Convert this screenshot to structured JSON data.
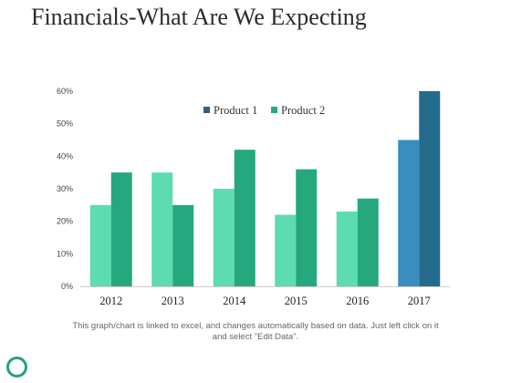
{
  "slide": {
    "title": "Financials-What Are We Expecting",
    "footnote_line1": "This graph/chart is linked to excel, and changes automatically based on data. Just left click on it",
    "footnote_line2": "and select \"Edit Data\".",
    "ring_icon": "ring-icon"
  },
  "chart_data": {
    "type": "bar",
    "categories": [
      "2012",
      "2013",
      "2014",
      "2015",
      "2016",
      "2017"
    ],
    "series": [
      {
        "name": "Product 1",
        "values": [
          25,
          35,
          30,
          22,
          23,
          45
        ],
        "color": "#5ddcb0"
      },
      {
        "name": "Product 2",
        "values": [
          35,
          25,
          42,
          36,
          27,
          60
        ],
        "color": "#26a87e"
      }
    ],
    "highlight": {
      "category": "2017",
      "colors": [
        "#3a8ebf",
        "#256b8c"
      ]
    },
    "legend_colors": [
      "#355e7b",
      "#26a87e"
    ],
    "ylim": [
      0,
      60
    ],
    "yticks": [
      0,
      10,
      20,
      30,
      40,
      50,
      60
    ],
    "ytick_labels": [
      "0%",
      "10%",
      "20%",
      "30%",
      "40%",
      "50%",
      "60%"
    ],
    "legend_position": "top-center",
    "grid": false
  }
}
